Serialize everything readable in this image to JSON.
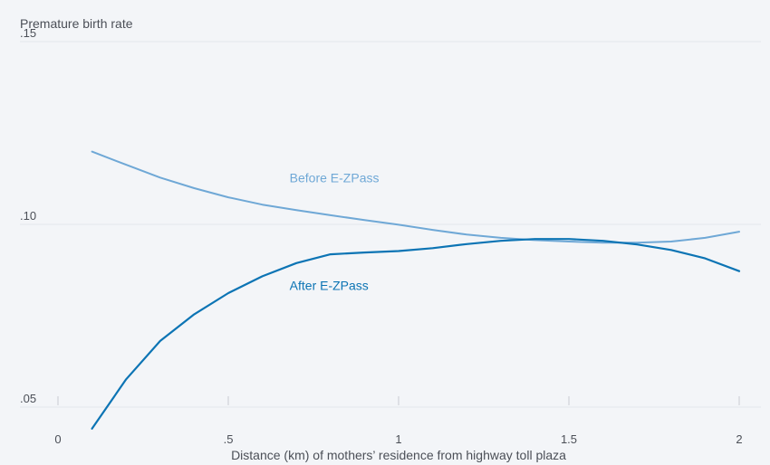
{
  "chart_data": {
    "type": "line",
    "ylabel": "Premature birth rate",
    "xlabel": "Distance (km) of mothers’ residence from highway toll plaza",
    "xlim": [
      0,
      2
    ],
    "ylim": [
      0.05,
      0.15
    ],
    "x_ticks": [
      0,
      0.5,
      1,
      1.5,
      2
    ],
    "x_tick_labels": [
      "0",
      ".5",
      "1",
      "1.5",
      "2"
    ],
    "y_ticks": [
      0.05,
      0.1,
      0.15
    ],
    "y_tick_labels": [
      ".05",
      ".10",
      ".15"
    ],
    "grid": true,
    "series": [
      {
        "name": "Before E-ZPass",
        "color": "#6fa8d6",
        "x": [
          0.1,
          0.2,
          0.3,
          0.4,
          0.5,
          0.6,
          0.7,
          0.8,
          0.9,
          1.0,
          1.1,
          1.2,
          1.3,
          1.4,
          1.5,
          1.6,
          1.7,
          1.8,
          1.9,
          2.0
        ],
        "y": [
          0.1199,
          0.1163,
          0.1128,
          0.1099,
          0.1074,
          0.1054,
          0.1039,
          0.1025,
          0.1012,
          0.0999,
          0.0985,
          0.0972,
          0.0963,
          0.0957,
          0.0953,
          0.095,
          0.095,
          0.0953,
          0.0963,
          0.098
        ]
      },
      {
        "name": "After E-ZPass",
        "color": "#0c74b4",
        "x": [
          0.1,
          0.2,
          0.3,
          0.4,
          0.5,
          0.6,
          0.7,
          0.8,
          0.9,
          1.0,
          1.1,
          1.2,
          1.3,
          1.4,
          1.5,
          1.6,
          1.7,
          1.8,
          1.9,
          2.0
        ],
        "y": [
          0.0441,
          0.0576,
          0.0681,
          0.0754,
          0.0812,
          0.0858,
          0.0894,
          0.0918,
          0.0923,
          0.0927,
          0.0935,
          0.0946,
          0.0955,
          0.096,
          0.096,
          0.0955,
          0.0945,
          0.093,
          0.0907,
          0.0872
        ]
      }
    ]
  }
}
